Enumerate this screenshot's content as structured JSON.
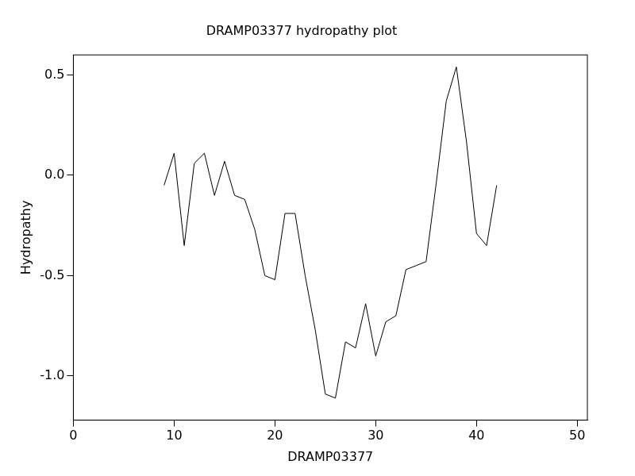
{
  "chart_data": {
    "type": "line",
    "title": "DRAMP03377 hydropathy plot",
    "x_label": "DRAMP03377",
    "y_label": "Hydropathy",
    "x": [
      9,
      10,
      11,
      12,
      13,
      14,
      15,
      16,
      17,
      18,
      19,
      20,
      21,
      22,
      23,
      24,
      25,
      26,
      27,
      28,
      29,
      30,
      31,
      32,
      33,
      34,
      35,
      36,
      37,
      38,
      39,
      40,
      41,
      42
    ],
    "values": [
      -0.05,
      0.11,
      -0.35,
      0.06,
      0.11,
      -0.1,
      0.07,
      -0.1,
      -0.12,
      -0.27,
      -0.5,
      -0.52,
      -0.19,
      -0.19,
      -0.5,
      -0.77,
      -1.09,
      -1.11,
      -0.83,
      -0.86,
      -0.64,
      -0.9,
      -0.73,
      -0.7,
      -0.47,
      -0.45,
      -0.43,
      -0.04,
      0.37,
      0.54,
      0.17,
      -0.29,
      -0.35,
      -0.05
    ],
    "color": "#000000",
    "xlim": [
      0,
      51
    ],
    "xticks": [
      0,
      10,
      20,
      30,
      40,
      50
    ],
    "ylim": [
      -1.22,
      0.6
    ],
    "yticks": [
      {
        "value": -1.0,
        "label": "-1.0"
      },
      {
        "value": -0.5,
        "label": "-0.5"
      },
      {
        "value": 0,
        "label": "0.0"
      },
      {
        "value": 0.5,
        "label": "0.5"
      }
    ],
    "grid": false
  }
}
